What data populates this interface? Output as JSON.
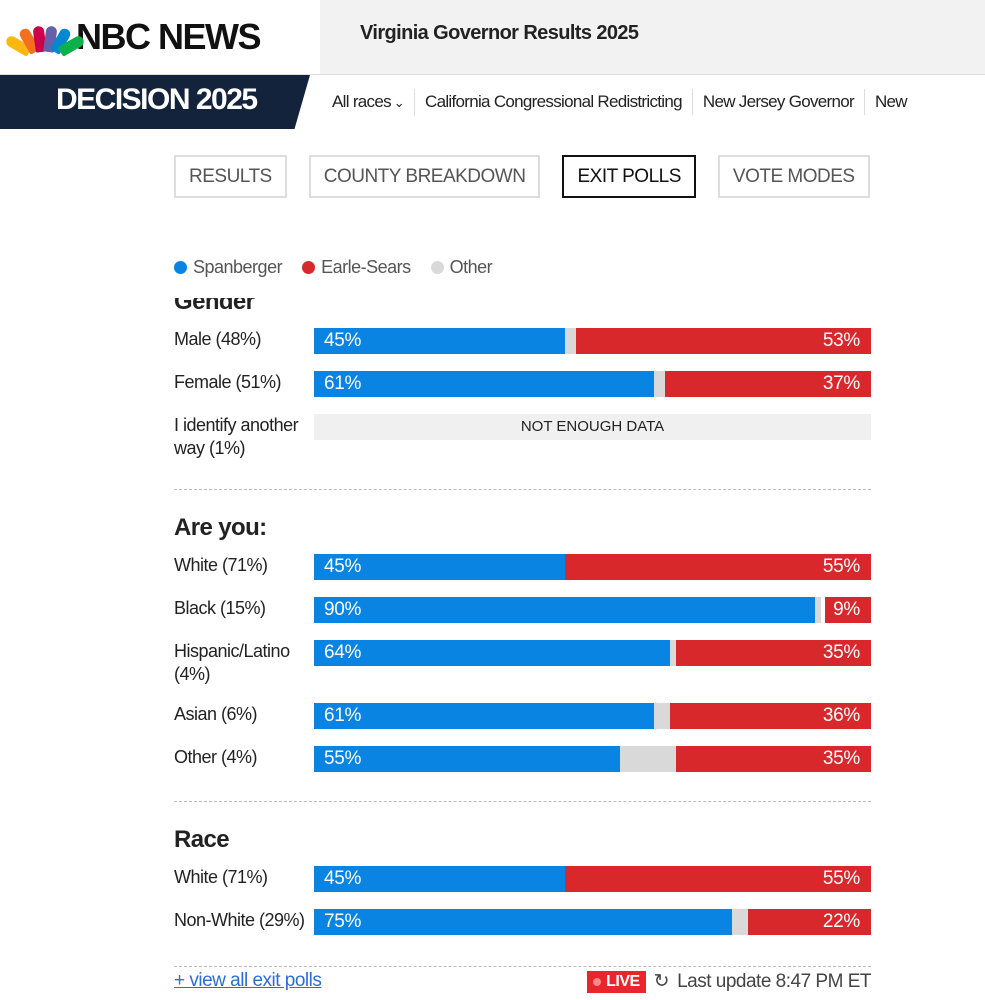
{
  "header": {
    "brand": "NBC NEWS",
    "title": "Virginia Governor Results 2025"
  },
  "nav": {
    "decision": "DECISION 2025",
    "items": [
      "All races",
      "California Congressional Redistricting",
      "New Jersey Governor",
      "New"
    ]
  },
  "tabs": [
    {
      "label": "RESULTS",
      "active": false
    },
    {
      "label": "COUNTY BREAKDOWN",
      "active": false
    },
    {
      "label": "EXIT POLLS",
      "active": true
    },
    {
      "label": "VOTE MODES",
      "active": false
    }
  ],
  "legend": [
    {
      "label": "Spanberger",
      "color": "#0a84e3"
    },
    {
      "label": "Earle-Sears",
      "color": "#d8282c"
    },
    {
      "label": "Other",
      "color": "#d9d9d9"
    }
  ],
  "groups": [
    {
      "title": "Gender",
      "rows": [
        {
          "label": "Male (48%)",
          "spanberger": 45,
          "earle_sears": 53
        },
        {
          "label": "Female (51%)",
          "spanberger": 61,
          "earle_sears": 37
        },
        {
          "label": "I identify another way (1%)",
          "no_data": "NOT ENOUGH DATA"
        }
      ]
    },
    {
      "title": "Are you:",
      "rows": [
        {
          "label": "White (71%)",
          "spanberger": 45,
          "earle_sears": 55
        },
        {
          "label": "Black (15%)",
          "spanberger": 90,
          "earle_sears": 9
        },
        {
          "label": "Hispanic/Latino (4%)",
          "spanberger": 64,
          "earle_sears": 35
        },
        {
          "label": "Asian (6%)",
          "spanberger": 61,
          "earle_sears": 36
        },
        {
          "label": "Other (4%)",
          "spanberger": 55,
          "earle_sears": 35
        }
      ]
    },
    {
      "title": "Race",
      "rows": [
        {
          "label": "White (71%)",
          "spanberger": 45,
          "earle_sears": 55
        },
        {
          "label": "Non-White (29%)",
          "spanberger": 75,
          "earle_sears": 22
        }
      ]
    }
  ],
  "footer": {
    "view_all": "+ view all exit polls",
    "live": "LIVE",
    "last_update": "Last update 8:47 PM ET"
  }
}
